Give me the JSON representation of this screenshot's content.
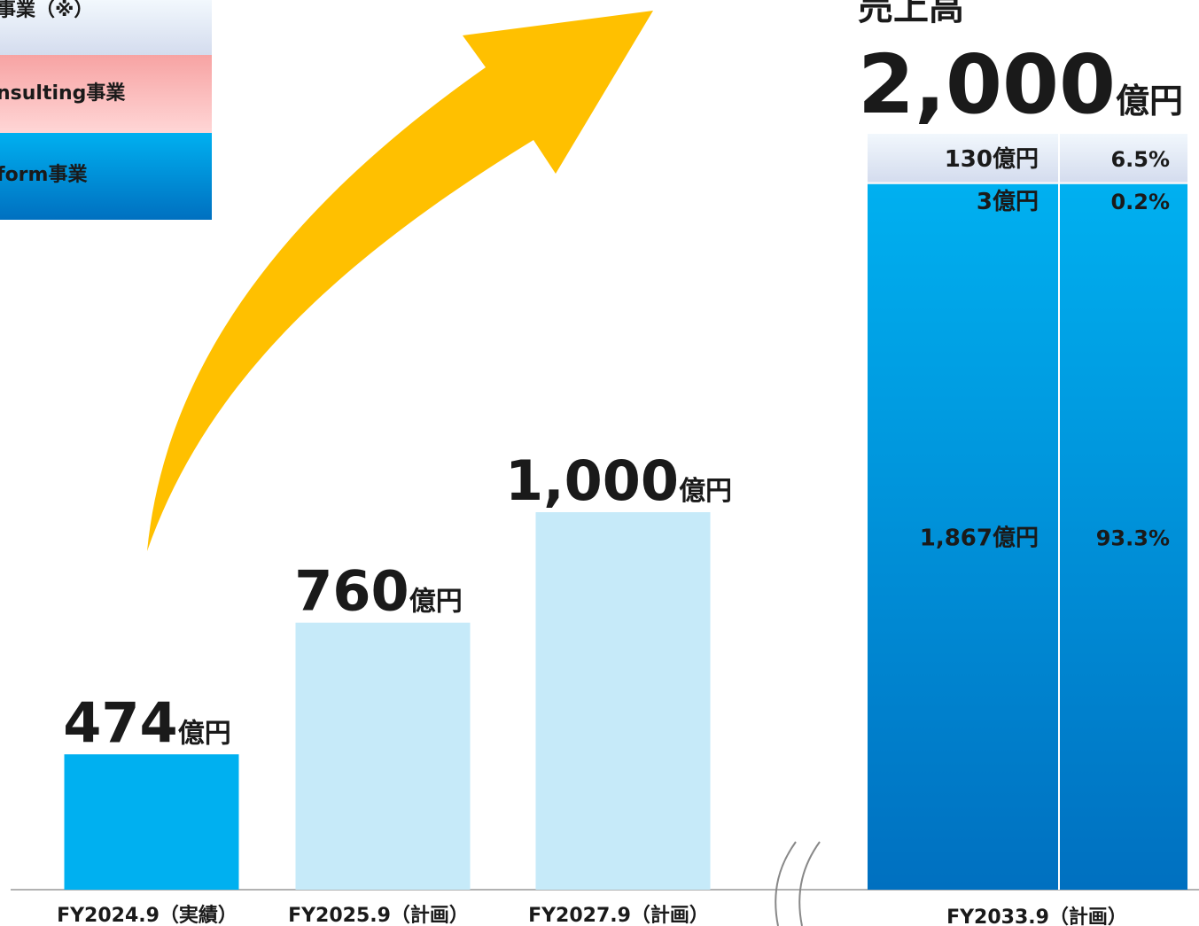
{
  "chart_data": {
    "type": "bar",
    "title": "売上高",
    "unit": "億円",
    "categories": [
      "FY2024.9（実績）",
      "FY2025.9（計画）",
      "FY2027.9（計画）"
    ],
    "values": [
      474,
      760,
      1000
    ],
    "value_labels": [
      "474",
      "760",
      "1,000"
    ],
    "colors": [
      "#00b0f0",
      "#c6eaf9",
      "#c6eaf9"
    ],
    "ylim": [
      180,
      1000
    ],
    "stack": {
      "category": "FY2033.9（計画）",
      "total": 2000,
      "total_label": "2,000",
      "y2lim": [
        0,
        2000
      ],
      "series": [
        {
          "name": "form事業",
          "colors": [
            "#00b0f0",
            "#0070c0"
          ],
          "value": 1867,
          "value_label": "1,867",
          "share": 93.3,
          "share_label": "93.3%"
        },
        {
          "name": "nsulting事業",
          "colors": [
            "#f7a3a3",
            "#ffd6d6"
          ],
          "value": 3,
          "value_label": "3",
          "share": 0.2,
          "share_label": "0.2%"
        },
        {
          "name": "事業（※）",
          "colors": [
            "#f2f8fd",
            "#d4dcee"
          ],
          "value": 130,
          "value_label": "130",
          "share": 6.5,
          "share_label": "6.5%"
        }
      ]
    }
  }
}
